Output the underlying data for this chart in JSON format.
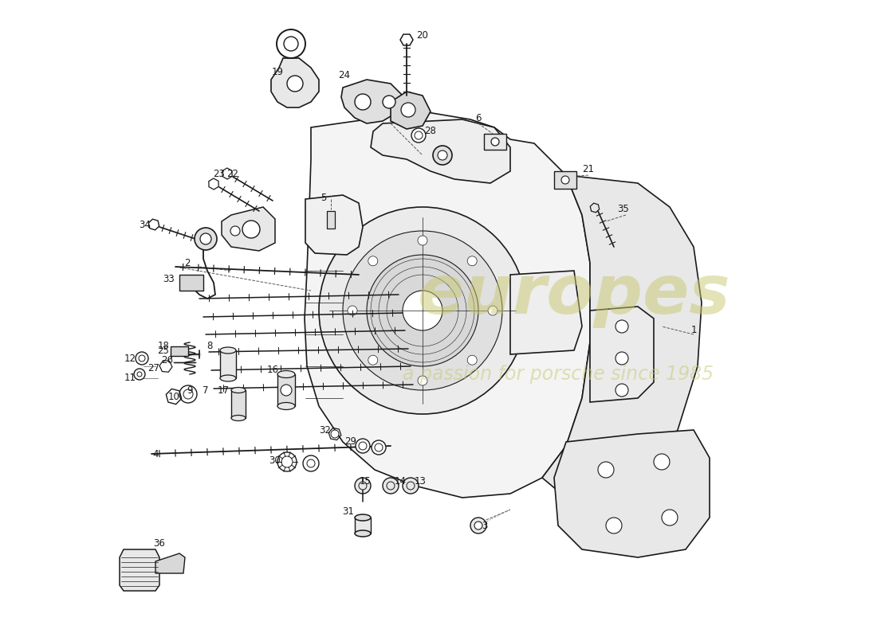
{
  "bg_color": "#ffffff",
  "line_color": "#1a1a1a",
  "watermark_color1": "#c8c870",
  "watermark_color2": "#c8c870",
  "label_color": "#1a1a1a",
  "label_fontsize": 8.5,
  "wm_fontsize1": 62,
  "wm_fontsize2": 17
}
